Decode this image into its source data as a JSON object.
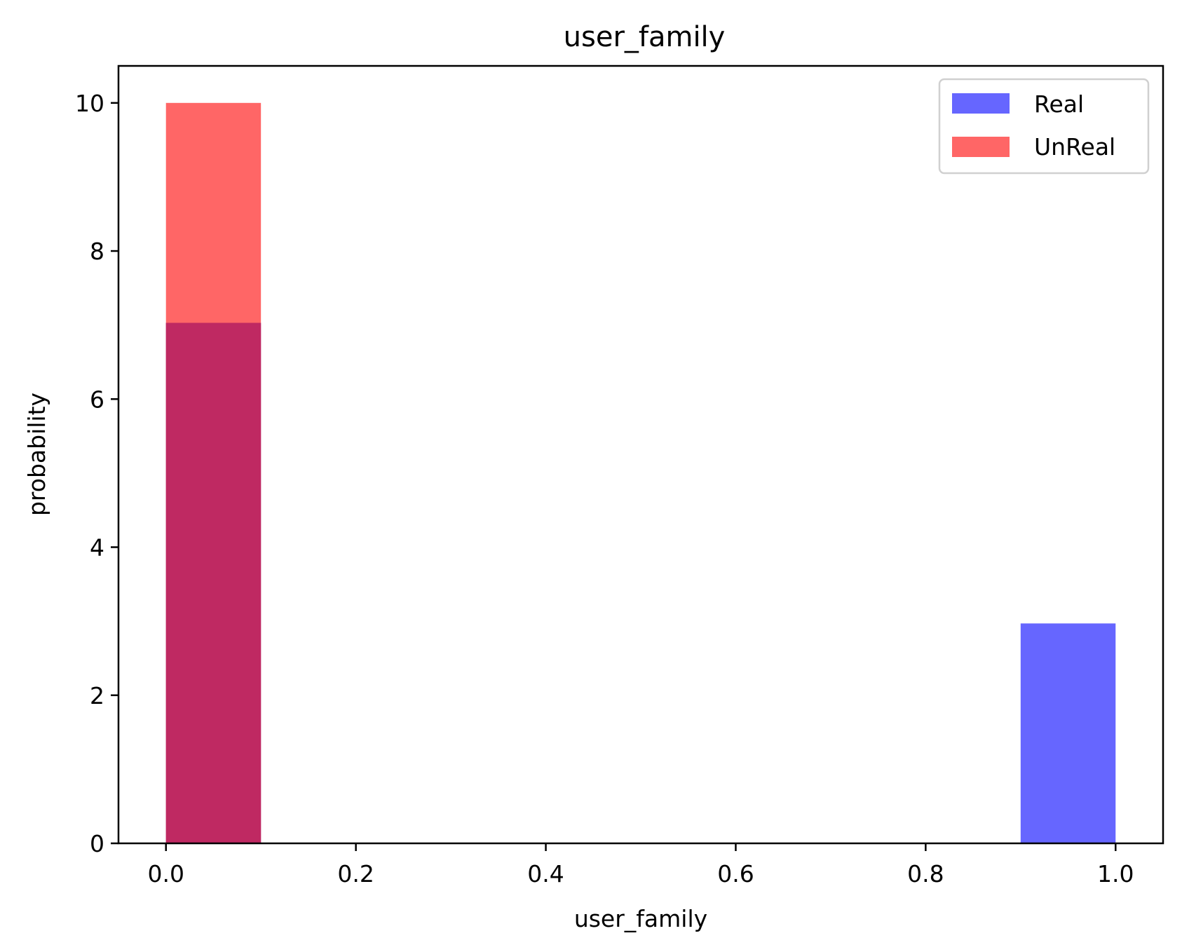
{
  "chart_data": {
    "type": "bar",
    "title": "user_family",
    "xlabel": "user_family",
    "ylabel": "probability",
    "xlim": [
      -0.05,
      1.05
    ],
    "ylim": [
      0,
      10.5
    ],
    "xticks": [
      0.0,
      0.2,
      0.4,
      0.6,
      0.8,
      1.0
    ],
    "xtick_labels": [
      "0.0",
      "0.2",
      "0.4",
      "0.6",
      "0.8",
      "1.0"
    ],
    "yticks": [
      0,
      2,
      4,
      6,
      8,
      10
    ],
    "ytick_labels": [
      "0",
      "2",
      "4",
      "6",
      "8",
      "10"
    ],
    "grid": false,
    "legend_position": "top-right",
    "series": [
      {
        "name": "Real",
        "color": "#6666ff",
        "bins": [
          {
            "x0": 0.0,
            "x1": 0.1,
            "value": 7.03
          },
          {
            "x0": 0.9,
            "x1": 1.0,
            "value": 2.97
          }
        ]
      },
      {
        "name": "UnReal",
        "color": "#ff6666",
        "bins": [
          {
            "x0": 0.0,
            "x1": 0.1,
            "value": 10.0
          }
        ]
      }
    ],
    "overlap_color": "#bf2962"
  }
}
